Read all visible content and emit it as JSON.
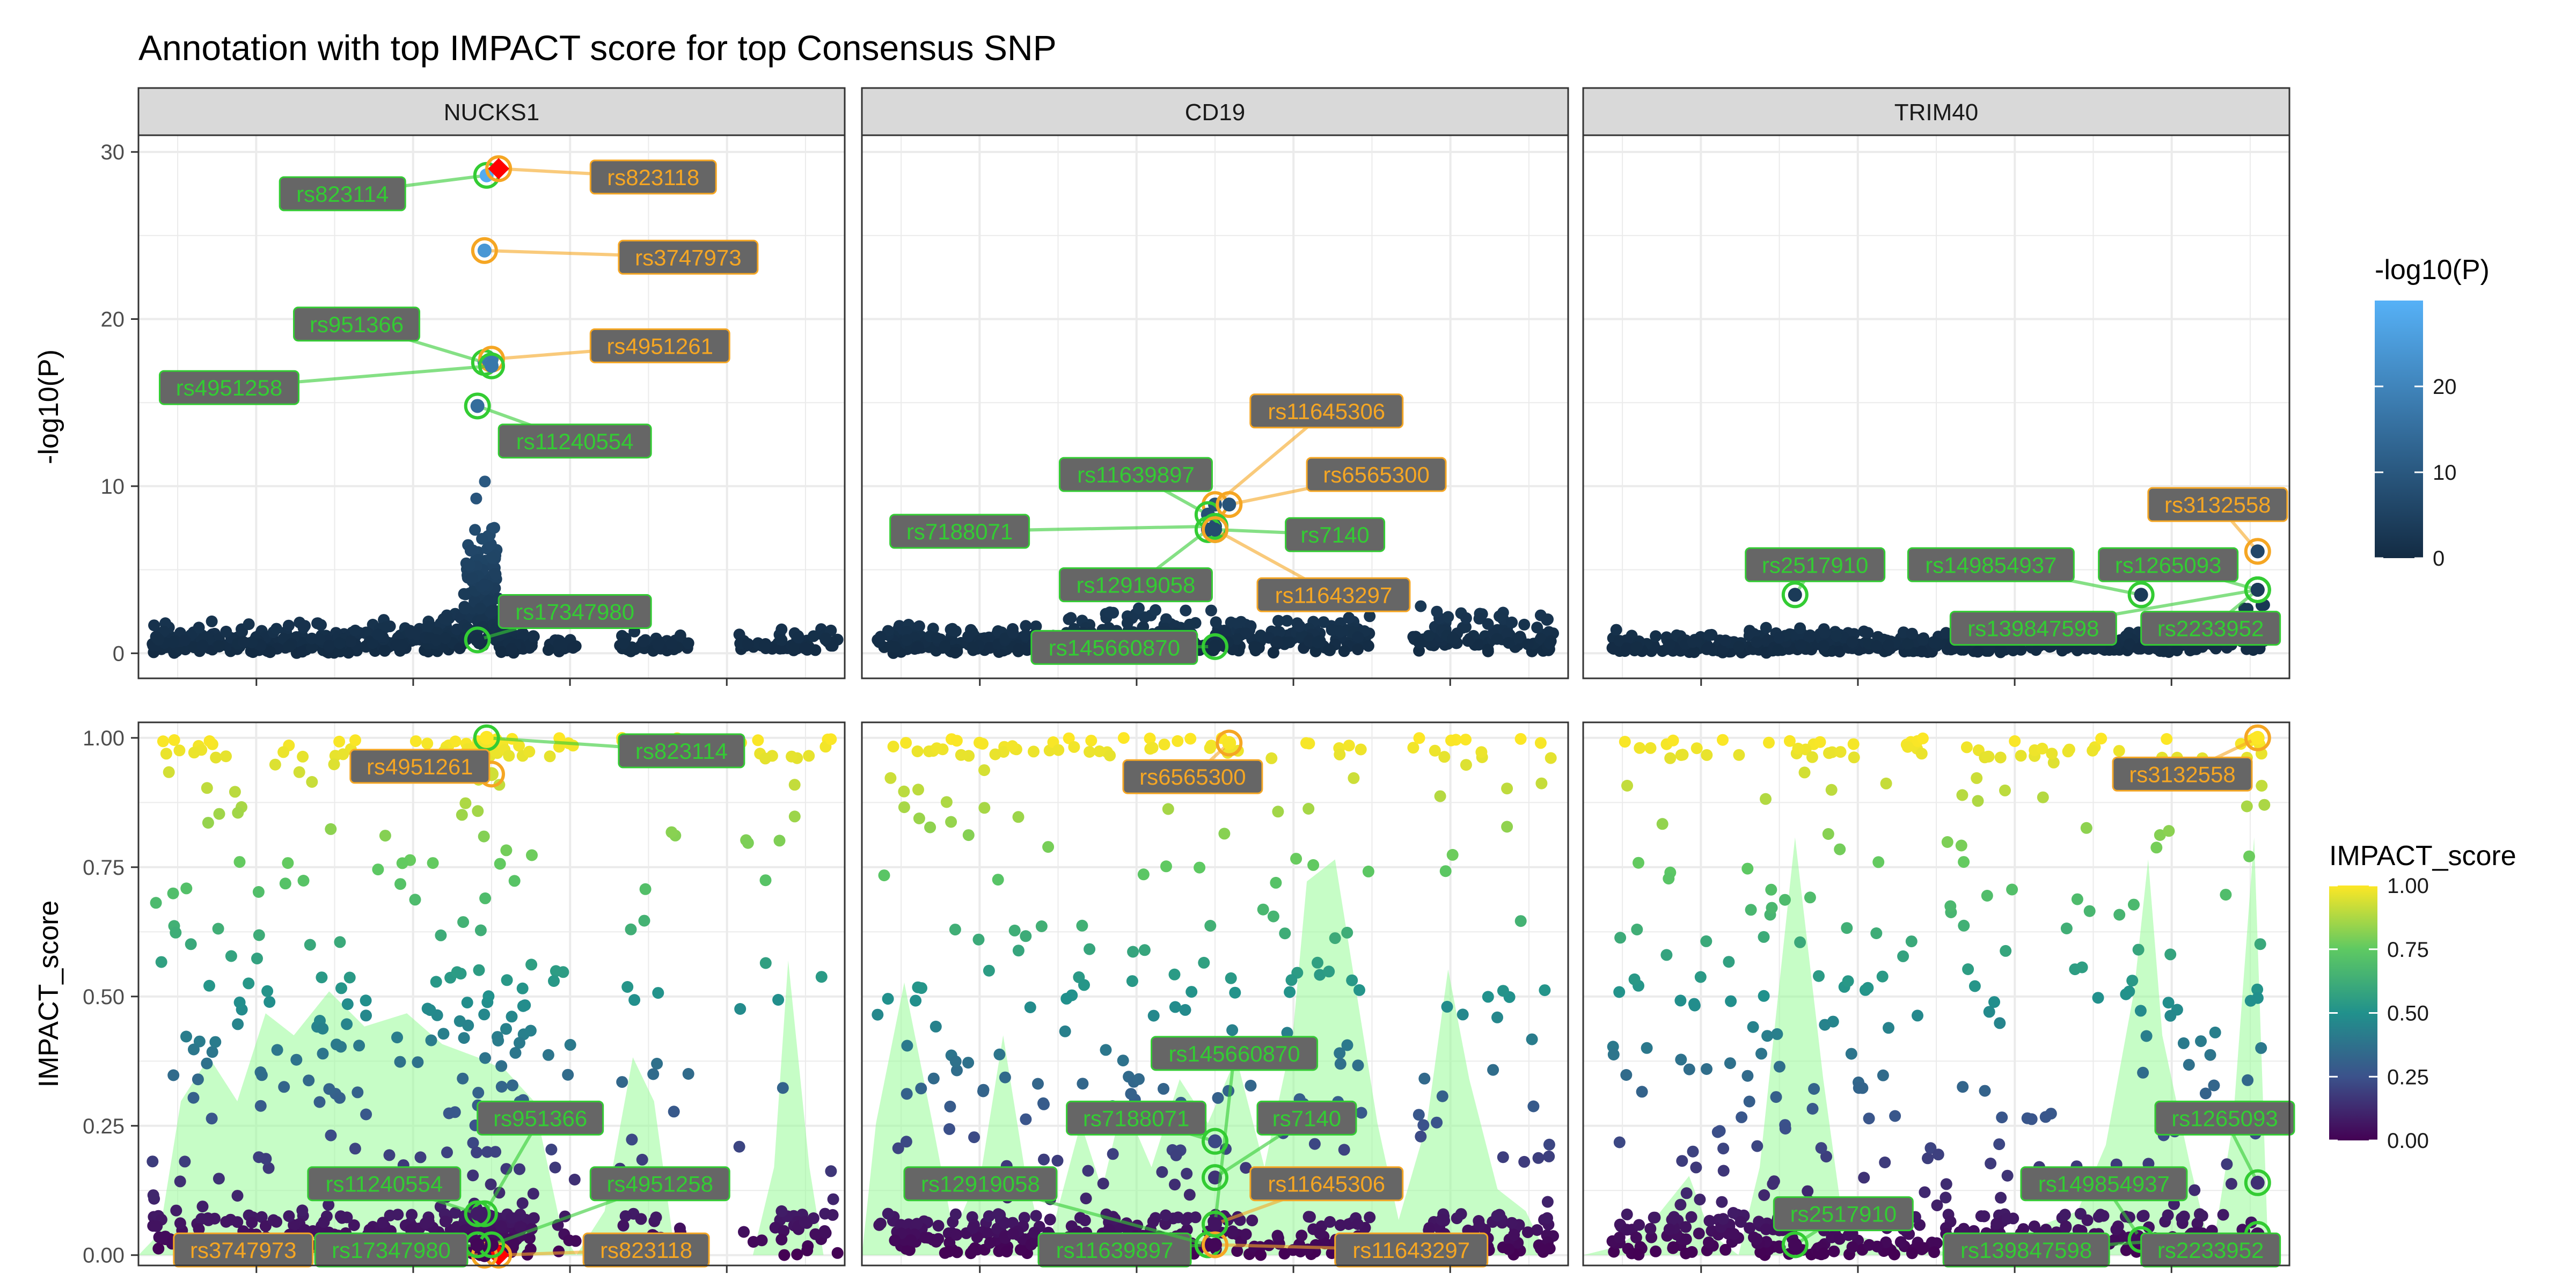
{
  "figure": {
    "title": "Annotation with top IMPACT score for top Consensus SNP"
  },
  "facets": [
    {
      "label": "NUCKS1",
      "density": [
        [
          0,
          0.0
        ],
        [
          0.03,
          0.05
        ],
        [
          0.06,
          0.35
        ],
        [
          0.1,
          0.45
        ],
        [
          0.14,
          0.35
        ],
        [
          0.18,
          0.55
        ],
        [
          0.22,
          0.5
        ],
        [
          0.27,
          0.6
        ],
        [
          0.32,
          0.52
        ],
        [
          0.38,
          0.55
        ],
        [
          0.43,
          0.48
        ],
        [
          0.48,
          0.45
        ],
        [
          0.52,
          0.42
        ],
        [
          0.56,
          0.35
        ],
        [
          0.6,
          0.05
        ],
        [
          0.62,
          0.0
        ],
        [
          0.66,
          0.1
        ],
        [
          0.7,
          0.45
        ],
        [
          0.73,
          0.35
        ],
        [
          0.76,
          0.0
        ],
        [
          0.82,
          0.0
        ],
        [
          0.87,
          0.0
        ],
        [
          0.9,
          0.2
        ],
        [
          0.92,
          0.67
        ],
        [
          0.95,
          0.2
        ],
        [
          0.97,
          0.0
        ]
      ]
    },
    {
      "label": "CD19",
      "density": [
        [
          0,
          0.0
        ],
        [
          0.02,
          0.3
        ],
        [
          0.06,
          0.62
        ],
        [
          0.1,
          0.3
        ],
        [
          0.13,
          0.05
        ],
        [
          0.17,
          0.2
        ],
        [
          0.2,
          0.5
        ],
        [
          0.23,
          0.2
        ],
        [
          0.26,
          0.0
        ],
        [
          0.31,
          0.3
        ],
        [
          0.34,
          0.15
        ],
        [
          0.37,
          0.35
        ],
        [
          0.41,
          0.2
        ],
        [
          0.45,
          0.4
        ],
        [
          0.49,
          0.3
        ],
        [
          0.53,
          0.45
        ],
        [
          0.57,
          0.2
        ],
        [
          0.61,
          0.5
        ],
        [
          0.63,
          0.85
        ],
        [
          0.67,
          0.9
        ],
        [
          0.7,
          0.6
        ],
        [
          0.73,
          0.3
        ],
        [
          0.76,
          0.08
        ],
        [
          0.8,
          0.3
        ],
        [
          0.83,
          0.65
        ],
        [
          0.86,
          0.4
        ],
        [
          0.9,
          0.15
        ],
        [
          0.94,
          0.1
        ],
        [
          0.97,
          0.0
        ]
      ]
    },
    {
      "label": "TRIM40",
      "density": [
        [
          0,
          0.0
        ],
        [
          0.05,
          0.02
        ],
        [
          0.1,
          0.08
        ],
        [
          0.15,
          0.18
        ],
        [
          0.18,
          0.05
        ],
        [
          0.22,
          0.0
        ],
        [
          0.25,
          0.2
        ],
        [
          0.3,
          0.95
        ],
        [
          0.34,
          0.4
        ],
        [
          0.37,
          0.05
        ],
        [
          0.45,
          0.02
        ],
        [
          0.55,
          0.0
        ],
        [
          0.62,
          0.05
        ],
        [
          0.7,
          0.1
        ],
        [
          0.74,
          0.25
        ],
        [
          0.78,
          0.6
        ],
        [
          0.8,
          0.9
        ],
        [
          0.82,
          0.5
        ],
        [
          0.86,
          0.2
        ],
        [
          0.89,
          0.0
        ],
        [
          0.92,
          0.3
        ],
        [
          0.95,
          0.95
        ],
        [
          0.97,
          0.0
        ]
      ]
    }
  ],
  "top_row": {
    "ylabel": "-log10(P)",
    "yticks": [
      0,
      10,
      20,
      30
    ],
    "ylim": [
      -1.5,
      31
    ]
  },
  "bottom_row": {
    "ylabel": "IMPACT_score",
    "yticks": [
      "0.00",
      "0.25",
      "0.50",
      "0.75",
      "1.00"
    ],
    "ylim": [
      -0.02,
      1.03
    ]
  },
  "legend_p": {
    "title": "-log10(P)",
    "ticks": [
      "0",
      "10",
      "20"
    ],
    "range": [
      0,
      30
    ],
    "colors": [
      "#132b43",
      "#56b1f7"
    ]
  },
  "legend_impact": {
    "title": "IMPACT_score",
    "ticks": [
      "0.00",
      "0.25",
      "0.50",
      "0.75",
      "1.00"
    ],
    "colors": [
      "#440154",
      "#3b528b",
      "#21918c",
      "#5ec962",
      "#fde725"
    ]
  },
  "colors": {
    "lead_label": "#f5a623",
    "consensus_label": "#33cc33",
    "label_fill": "#666666",
    "lead_point": "#ff0000",
    "density_fill": "#98fb98"
  },
  "chart_data": {
    "type": "scatter",
    "title": "Annotation with top IMPACT score for top Consensus SNP",
    "facets": [
      "NUCKS1",
      "CD19",
      "TRIM40"
    ],
    "rows": [
      "-log10(P)",
      "IMPACT_score"
    ],
    "x_range": [
      0,
      1
    ],
    "grid": true,
    "legends": [
      "-log10(P)",
      "IMPACT_score"
    ],
    "labels": [
      {
        "facet": 0,
        "snp": "rs823114",
        "type": "consensus",
        "x": 0.493,
        "p": 28.6,
        "impact": 1.0,
        "p_label": [
          0.2,
          27.5
        ],
        "i_label": [
          0.68,
          0.975
        ]
      },
      {
        "facet": 0,
        "snp": "rs823118",
        "type": "lead",
        "x": 0.51,
        "p": 29.0,
        "impact": 0.0,
        "p_label": [
          0.64,
          28.5
        ],
        "i_label": [
          0.63,
          0.01
        ]
      },
      {
        "facet": 0,
        "snp": "rs3747973",
        "type": "lead",
        "x": 0.49,
        "p": 24.1,
        "impact": 0.0,
        "p_label": [
          0.68,
          23.7
        ],
        "i_label": [
          0.05,
          0.01
        ]
      },
      {
        "facet": 0,
        "snp": "rs951366",
        "type": "consensus",
        "x": 0.49,
        "p": 17.4,
        "impact": 0.08,
        "p_label": [
          0.22,
          19.7
        ],
        "i_label": [
          0.48,
          0.265
        ]
      },
      {
        "facet": 0,
        "snp": "rs4951261",
        "type": "lead",
        "x": 0.5,
        "p": 17.6,
        "impact": 0.93,
        "p_label": [
          0.64,
          18.4
        ],
        "i_label": [
          0.3,
          0.945
        ]
      },
      {
        "facet": 0,
        "snp": "rs4951258",
        "type": "consensus",
        "x": 0.5,
        "p": 17.2,
        "impact": 0.02,
        "p_label": [
          0.03,
          15.9
        ],
        "i_label": [
          0.64,
          0.138
        ]
      },
      {
        "facet": 0,
        "snp": "rs11240554",
        "type": "consensus",
        "x": 0.48,
        "p": 14.8,
        "impact": 0.08,
        "p_label": [
          0.51,
          12.7
        ],
        "i_label": [
          0.24,
          0.138
        ]
      },
      {
        "facet": 0,
        "snp": "rs17347980",
        "type": "consensus",
        "x": 0.48,
        "p": 0.8,
        "impact": 0.02,
        "p_label": [
          0.51,
          2.5
        ],
        "i_label": [
          0.25,
          0.01
        ]
      },
      {
        "facet": 1,
        "snp": "rs11645306",
        "type": "lead",
        "x": 0.5,
        "p": 8.9,
        "impact": 0.06,
        "p_label": [
          0.55,
          14.5
        ],
        "i_label": [
          0.55,
          0.138
        ]
      },
      {
        "facet": 1,
        "snp": "rs11639897",
        "type": "consensus",
        "x": 0.49,
        "p": 8.3,
        "impact": 0.02,
        "p_label": [
          0.28,
          10.7
        ],
        "i_label": [
          0.25,
          0.01
        ]
      },
      {
        "facet": 1,
        "snp": "rs6565300",
        "type": "lead",
        "x": 0.52,
        "p": 8.9,
        "impact": 0.99,
        "p_label": [
          0.63,
          10.7
        ],
        "i_label": [
          0.37,
          0.925
        ]
      },
      {
        "facet": 1,
        "snp": "rs7188071",
        "type": "consensus",
        "x": 0.5,
        "p": 7.6,
        "impact": 0.22,
        "p_label": [
          0.04,
          7.3
        ],
        "i_label": [
          0.29,
          0.265
        ]
      },
      {
        "facet": 1,
        "snp": "rs7140",
        "type": "consensus",
        "x": 0.5,
        "p": 7.4,
        "impact": 0.15,
        "p_label": [
          0.6,
          7.1
        ],
        "i_label": [
          0.56,
          0.265
        ]
      },
      {
        "facet": 1,
        "snp": "rs12919058",
        "type": "consensus",
        "x": 0.49,
        "p": 7.4,
        "impact": 0.02,
        "p_label": [
          0.28,
          4.1
        ],
        "i_label": [
          0.06,
          0.138
        ]
      },
      {
        "facet": 1,
        "snp": "rs11643297",
        "type": "lead",
        "x": 0.5,
        "p": 7.4,
        "impact": 0.02,
        "p_label": [
          0.56,
          3.5
        ],
        "i_label": [
          0.67,
          0.01
        ]
      },
      {
        "facet": 1,
        "snp": "rs145660870",
        "type": "consensus",
        "x": 0.5,
        "p": 0.4,
        "impact": 0.06,
        "p_label": [
          0.24,
          0.35
        ],
        "i_label": [
          0.41,
          0.39
        ]
      },
      {
        "facet": 2,
        "snp": "rs3132558",
        "type": "lead",
        "x": 0.955,
        "p": 6.1,
        "impact": 1.0,
        "p_label": [
          0.8,
          8.9
        ],
        "i_label": [
          0.75,
          0.93
        ]
      },
      {
        "facet": 2,
        "snp": "rs2517910",
        "type": "consensus",
        "x": 0.3,
        "p": 3.5,
        "impact": 0.02,
        "p_label": [
          0.23,
          5.3
        ],
        "i_label": [
          0.27,
          0.08
        ]
      },
      {
        "facet": 2,
        "snp": "rs149854937",
        "type": "consensus",
        "x": 0.79,
        "p": 3.5,
        "impact": 0.03,
        "p_label": [
          0.46,
          5.3
        ],
        "i_label": [
          0.62,
          0.138
        ]
      },
      {
        "facet": 2,
        "snp": "rs1265093",
        "type": "consensus",
        "x": 0.955,
        "p": 3.8,
        "impact": 0.14,
        "p_label": [
          0.73,
          5.3
        ],
        "i_label": [
          0.81,
          0.265
        ]
      },
      {
        "facet": 2,
        "snp": "rs139847598",
        "type": "consensus",
        "x": 0.955,
        "p": 3.8,
        "impact": 0.04,
        "p_label": [
          0.52,
          1.5
        ],
        "i_label": [
          0.51,
          0.01
        ]
      },
      {
        "facet": 2,
        "snp": "rs2233952",
        "type": "consensus",
        "x": 0.955,
        "p": 3.8,
        "impact": 0.04,
        "p_label": [
          0.79,
          1.5
        ],
        "i_label": [
          0.79,
          0.01
        ]
      }
    ]
  }
}
